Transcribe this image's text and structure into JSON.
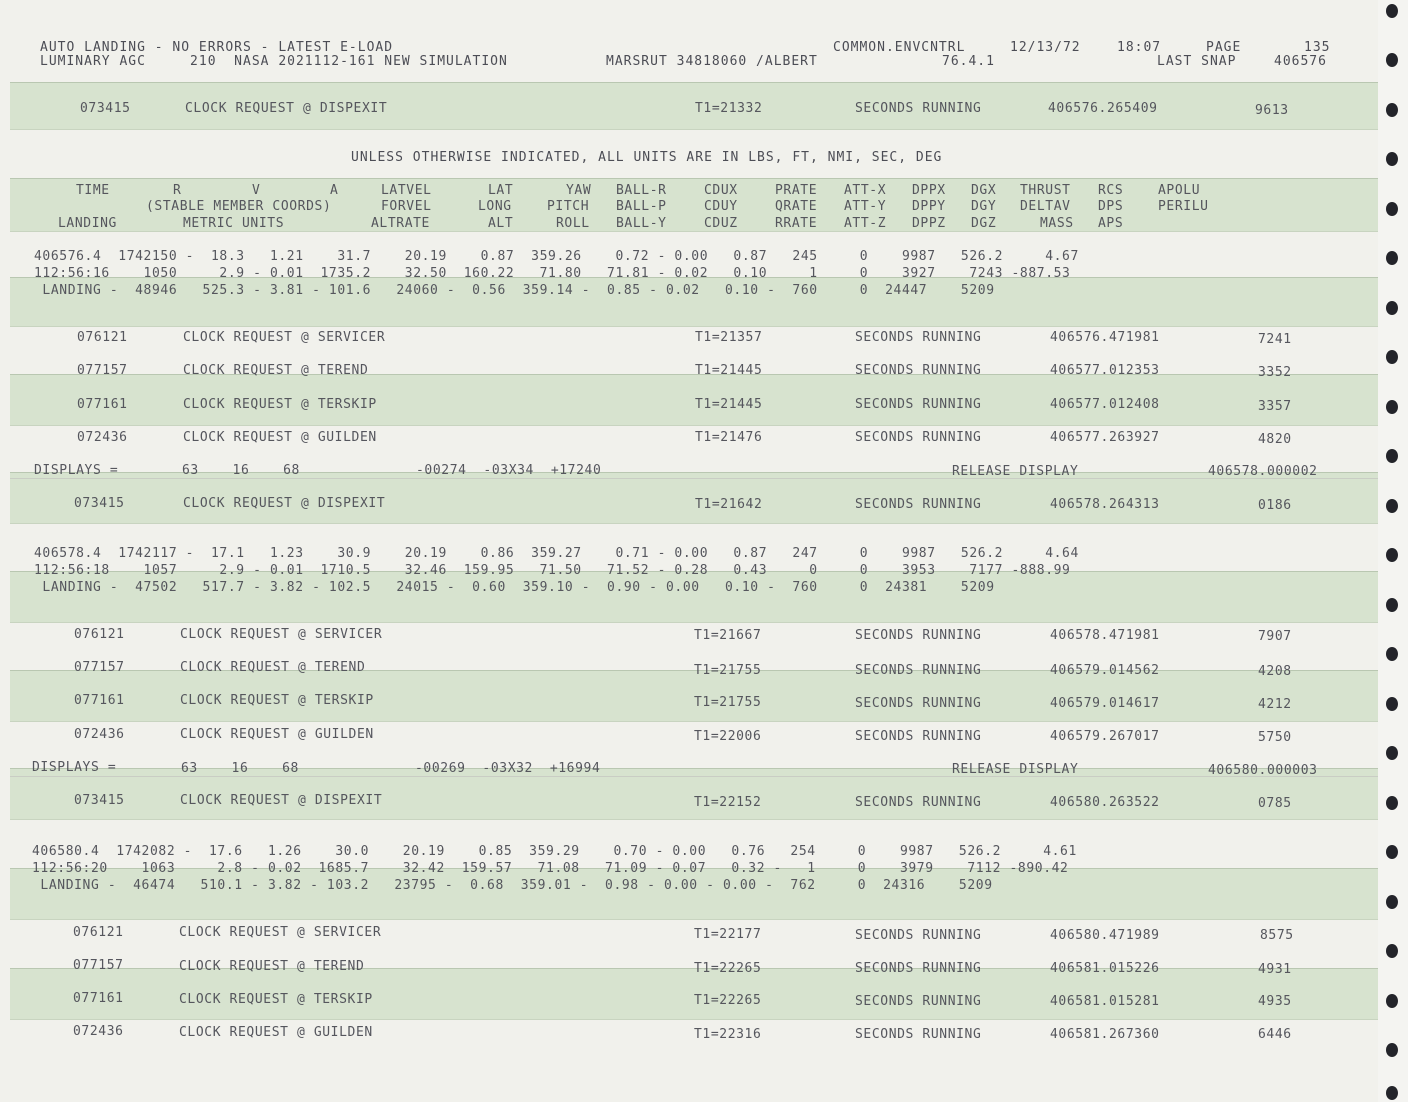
{
  "header": {
    "line1_left": "AUTO LANDING - NO ERRORS - LATEST E-LOAD",
    "line2_left": "LUMINARY AGC     210  NASA 2021112-161 NEW SIMULATION",
    "author": "MARSRUT 34818060 /ALBERT",
    "program": "COMMON.ENVCNTRL",
    "version": "76.4.1",
    "date": "12/13/72",
    "time": "18:07",
    "page_label": "PAGE",
    "page_number": "135",
    "last_snap_label": "LAST SNAP",
    "last_snap_value": "406576"
  },
  "units_note": "UNLESS OTHERWISE INDICATED, ALL UNITS ARE IN LBS, FT, NMI, SEC, DEG",
  "column_headers": [
    [
      "TIME",
      "R",
      "V",
      "A",
      "LATVEL",
      "LAT",
      "YAW",
      "BALL-R",
      "CDUX",
      "PRATE",
      "ATT-X",
      "DPPX",
      "DGX",
      "THRUST",
      "RCS",
      "APOLU"
    ],
    [
      "(STABLE MEMBER COORDS)",
      "FORVEL",
      "LONG",
      "PITCH",
      "BALL-P",
      "CDUY",
      "QRATE",
      "ATT-Y",
      "DPPY",
      "DGY",
      "DELTAV",
      "DPS",
      "PERILU"
    ],
    [
      "LANDING",
      "METRIC UNITS",
      "ALTRATE",
      "ALT",
      "ROLL",
      "BALL-Y",
      "CDUZ",
      "RRATE",
      "ATT-Z",
      "DPPZ",
      "DGZ",
      "MASS",
      "APS"
    ]
  ],
  "clock_requests": [
    {
      "addr": "073415",
      "text": "CLOCK REQUEST @ DISPEXIT",
      "t1": "T1=21332",
      "status": "SECONDS RUNNING",
      "time": "406576.265409",
      "num": "9613"
    },
    {
      "addr": "076121",
      "text": "CLOCK REQUEST @ SERVICER",
      "t1": "T1=21357",
      "status": "SECONDS RUNNING",
      "time": "406576.471981",
      "num": "7241"
    },
    {
      "addr": "077157",
      "text": "CLOCK REQUEST @ TEREND",
      "t1": "T1=21445",
      "status": "SECONDS RUNNING",
      "time": "406577.012353",
      "num": "3352"
    },
    {
      "addr": "077161",
      "text": "CLOCK REQUEST @ TERSKIP",
      "t1": "T1=21445",
      "status": "SECONDS RUNNING",
      "time": "406577.012408",
      "num": "3357"
    },
    {
      "addr": "072436",
      "text": "CLOCK REQUEST @ GUILDEN",
      "t1": "T1=21476",
      "status": "SECONDS RUNNING",
      "time": "406577.263927",
      "num": "4820"
    },
    {
      "addr": "073415",
      "text": "CLOCK REQUEST @ DISPEXIT",
      "t1": "T1=21642",
      "status": "SECONDS RUNNING",
      "time": "406578.264313",
      "num": "0186"
    },
    {
      "addr": "076121",
      "text": "CLOCK REQUEST @ SERVICER",
      "t1": "T1=21667",
      "status": "SECONDS RUNNING",
      "time": "406578.471981",
      "num": "7907"
    },
    {
      "addr": "077157",
      "text": "CLOCK REQUEST @ TEREND",
      "t1": "T1=21755",
      "status": "SECONDS RUNNING",
      "time": "406579.014562",
      "num": "4208"
    },
    {
      "addr": "077161",
      "text": "CLOCK REQUEST @ TERSKIP",
      "t1": "T1=21755",
      "status": "SECONDS RUNNING",
      "time": "406579.014617",
      "num": "4212"
    },
    {
      "addr": "072436",
      "text": "CLOCK REQUEST @ GUILDEN",
      "t1": "T1=22006",
      "status": "SECONDS RUNNING",
      "time": "406579.267017",
      "num": "5750"
    },
    {
      "addr": "073415",
      "text": "CLOCK REQUEST @ DISPEXIT",
      "t1": "T1=22152",
      "status": "SECONDS RUNNING",
      "time": "406580.263522",
      "num": "0785"
    },
    {
      "addr": "076121",
      "text": "CLOCK REQUEST @ SERVICER",
      "t1": "T1=22177",
      "status": "SECONDS RUNNING",
      "time": "406580.471989",
      "num": "8575"
    },
    {
      "addr": "077157",
      "text": "CLOCK REQUEST @ TEREND",
      "t1": "T1=22265",
      "status": "SECONDS RUNNING",
      "time": "406581.015226",
      "num": "4931"
    },
    {
      "addr": "077161",
      "text": "CLOCK REQUEST @ TERSKIP",
      "t1": "T1=22265",
      "status": "SECONDS RUNNING",
      "time": "406581.015281",
      "num": "4935"
    },
    {
      "addr": "072436",
      "text": "CLOCK REQUEST @ GUILDEN",
      "t1": "T1=22316",
      "status": "SECONDS RUNNING",
      "time": "406581.267360",
      "num": "6446"
    }
  ],
  "displays": [
    {
      "label": "DISPLAYS =",
      "codes": "63    16    68",
      "values": "-00274  -03X34  +17240",
      "action": "RELEASE DISPLAY",
      "time": "406578.000002"
    },
    {
      "label": "DISPLAYS =",
      "codes": "63    16    68",
      "values": "-00269  -03X32  +16994",
      "action": "RELEASE DISPLAY",
      "time": "406580.000003"
    }
  ],
  "state_blocks": [
    {
      "lines": [
        "406576.4  1742150 -  18.3   1.21    31.7    20.19    0.87  359.26    0.72 - 0.00   0.87   245     0    9987   526.2     4.67",
        "112:56:16    1050     2.9 - 0.01  1735.2    32.50  160.22   71.80   71.81 - 0.02   0.10     1     0    3927    7243 -887.53",
        " LANDING -  48946   525.3 - 3.81 - 101.6   24060 -  0.56  359.14 -  0.85 - 0.02   0.10 -  760     0  24447    5209"
      ]
    },
    {
      "lines": [
        "406578.4  1742117 -  17.1   1.23    30.9    20.19    0.86  359.27    0.71 - 0.00   0.87   247     0    9987   526.2     4.64",
        "112:56:18    1057     2.9 - 0.01  1710.5    32.46  159.95   71.50   71.52 - 0.28   0.43     0     0    3953    7177 -888.99",
        " LANDING -  47502   517.7 - 3.82 - 102.5   24015 -  0.60  359.10 -  0.90 - 0.00   0.10 -  760     0  24381    5209"
      ]
    },
    {
      "lines": [
        "406580.4  1742082 -  17.6   1.26    30.0    20.19    0.85  359.29    0.70 - 0.00   0.76   254     0    9987   526.2     4.61",
        "112:56:20    1063     2.8 - 0.02  1685.7    32.42  159.57   71.08   71.09 - 0.07   0.32 -   1     0    3979    7112 -890.42",
        " LANDING -  46474   510.1 - 3.82 - 103.2   23795 -  0.68  359.01 -  0.98 - 0.00 - 0.00 -  762     0  24316    5209"
      ]
    }
  ]
}
